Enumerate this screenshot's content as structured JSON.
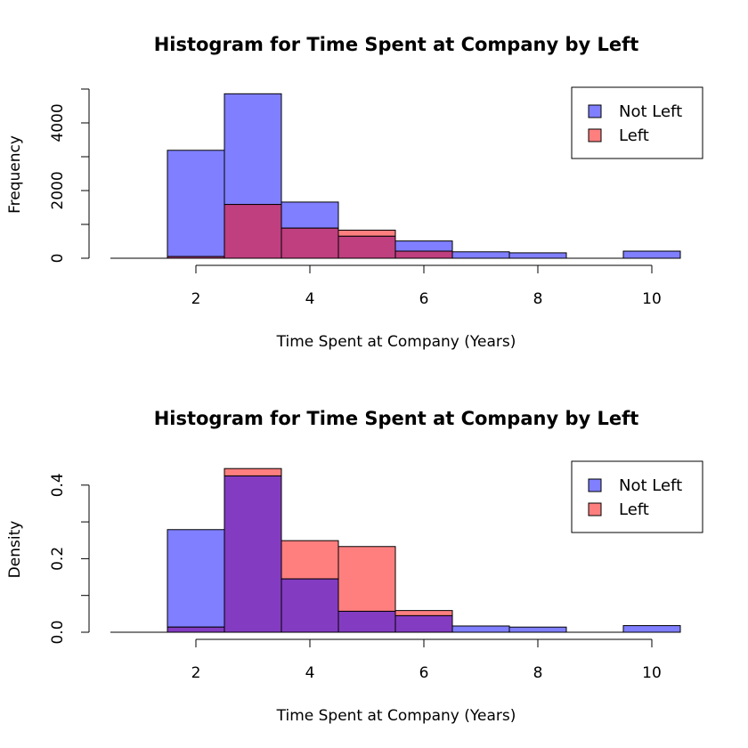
{
  "colors": {
    "not_left": "#7f7fff",
    "left": "#ff7f7f",
    "overlap": "#bf3f7f",
    "overlap_density": "#833cc1"
  },
  "chart_data": [
    {
      "type": "bar",
      "title": "Histogram for Time Spent at Company by Left",
      "xlabel": "Time Spent at Company (Years)",
      "ylabel": "Frequency",
      "xlim": [
        0.5,
        10.5
      ],
      "ylim": [
        0,
        5000
      ],
      "x_ticks": [
        2,
        4,
        6,
        8,
        10
      ],
      "y_ticks": [
        0,
        2000,
        4000
      ],
      "y_minor_ticks": [
        0,
        1000,
        2000,
        3000,
        4000,
        5000
      ],
      "bins": [
        [
          1.5,
          2.5
        ],
        [
          2.5,
          3.5
        ],
        [
          3.5,
          4.5
        ],
        [
          4.5,
          5.5
        ],
        [
          5.5,
          6.5
        ],
        [
          6.5,
          7.5
        ],
        [
          7.5,
          8.5
        ],
        [
          8.5,
          9.5
        ],
        [
          9.5,
          10.5
        ]
      ],
      "legend": {
        "position": "top-right",
        "entries": [
          "Not Left",
          "Left"
        ]
      },
      "series": [
        {
          "name": "Not Left",
          "values": [
            3190,
            4860,
            1660,
            650,
            510,
            190,
            160,
            0,
            210
          ]
        },
        {
          "name": "Left",
          "values": [
            50,
            1590,
            890,
            830,
            210,
            0,
            0,
            0,
            0
          ]
        }
      ]
    },
    {
      "type": "bar",
      "title": "Histogram for Time Spent at Company by Left",
      "xlabel": "Time Spent at Company (Years)",
      "ylabel": "Density",
      "xlim": [
        0.5,
        10.5
      ],
      "ylim": [
        0,
        0.46
      ],
      "x_ticks": [
        2,
        4,
        6,
        8,
        10
      ],
      "y_ticks": [
        "0.0",
        "0.2",
        "0.4"
      ],
      "y_minor_ticks": [
        0,
        0.1,
        0.2,
        0.3,
        0.4
      ],
      "bins": [
        [
          1.5,
          2.5
        ],
        [
          2.5,
          3.5
        ],
        [
          3.5,
          4.5
        ],
        [
          4.5,
          5.5
        ],
        [
          5.5,
          6.5
        ],
        [
          6.5,
          7.5
        ],
        [
          7.5,
          8.5
        ],
        [
          8.5,
          9.5
        ],
        [
          9.5,
          10.5
        ]
      ],
      "legend": {
        "position": "top-right",
        "entries": [
          "Not Left",
          "Left"
        ]
      },
      "series": [
        {
          "name": "Not Left",
          "values": [
            0.279,
            0.425,
            0.145,
            0.057,
            0.045,
            0.017,
            0.014,
            0.0,
            0.018
          ]
        },
        {
          "name": "Left",
          "values": [
            0.014,
            0.445,
            0.249,
            0.233,
            0.059,
            0.0,
            0.0,
            0.0,
            0.0
          ]
        }
      ]
    }
  ]
}
